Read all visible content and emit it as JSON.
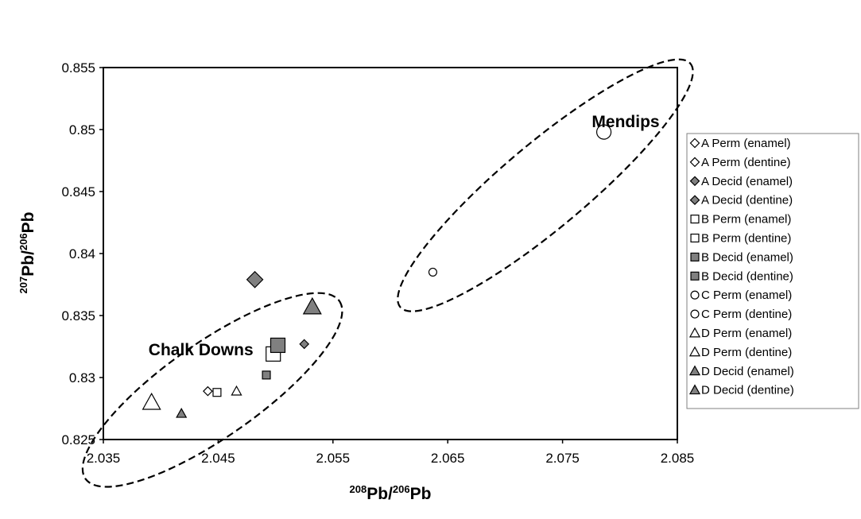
{
  "chart_data": {
    "type": "scatter",
    "title": "",
    "xlabel": {
      "sup1": "208",
      "main1": "Pb/",
      "sup2": "206",
      "main2": "Pb"
    },
    "ylabel": {
      "sup1": "207",
      "main1": "Pb/",
      "sup2": "206",
      "main2": "Pb"
    },
    "xlim": [
      2.035,
      2.085
    ],
    "ylim": [
      0.825,
      0.855
    ],
    "x_ticks": [
      "2.035",
      "2.045",
      "2.055",
      "2.065",
      "2.075",
      "2.085"
    ],
    "y_ticks": [
      "0.825",
      "0.83",
      "0.835",
      "0.84",
      "0.845",
      "0.85",
      "0.855"
    ],
    "grid": false,
    "legend_position": "right",
    "annotations": [
      {
        "text": "Mendips",
        "x": 2.0805,
        "y": 0.8502
      },
      {
        "text": "Chalk Downs",
        "x": 2.0435,
        "y": 0.8318
      }
    ],
    "regions": [
      {
        "name": "Mendips",
        "cx": 2.0735,
        "cy": 0.8455,
        "rx": 0.0165,
        "ry": 0.0034,
        "angle": -40
      },
      {
        "name": "Chalk Downs",
        "cx": 2.0445,
        "cy": 0.829,
        "rx": 0.0135,
        "ry": 0.0038,
        "angle": -35
      }
    ],
    "colors": {
      "open": "#ffffff",
      "filled": "#808080",
      "stroke": "#000000"
    },
    "series": [
      {
        "name": "A Perm (enamel)",
        "marker": "diamond",
        "fill": "open",
        "size": "small",
        "points": [
          [
            2.0441,
            0.8289
          ]
        ]
      },
      {
        "name": "A Perm (dentine)",
        "marker": "diamond",
        "fill": "open",
        "size": "large",
        "points": []
      },
      {
        "name": "A Decid (enamel)",
        "marker": "diamond",
        "fill": "filled",
        "size": "small",
        "points": [
          [
            2.0525,
            0.8327
          ]
        ]
      },
      {
        "name": "A Decid (dentine)",
        "marker": "diamond",
        "fill": "filled",
        "size": "large",
        "points": [
          [
            2.0482,
            0.8379
          ]
        ]
      },
      {
        "name": "B Perm (enamel)",
        "marker": "square",
        "fill": "open",
        "size": "small",
        "points": [
          [
            2.0449,
            0.8288
          ]
        ]
      },
      {
        "name": "B Perm (dentine)",
        "marker": "square",
        "fill": "open",
        "size": "large",
        "points": [
          [
            2.0498,
            0.8319
          ]
        ]
      },
      {
        "name": "B Decid (enamel)",
        "marker": "square",
        "fill": "filled",
        "size": "small",
        "points": [
          [
            2.0492,
            0.8302
          ]
        ]
      },
      {
        "name": "B Decid (dentine)",
        "marker": "square",
        "fill": "filled",
        "size": "large",
        "points": [
          [
            2.0502,
            0.8326
          ]
        ]
      },
      {
        "name": "C Perm (enamel)",
        "marker": "circle",
        "fill": "open",
        "size": "small",
        "points": [
          [
            2.0637,
            0.8385
          ]
        ]
      },
      {
        "name": "C Perm (dentine)",
        "marker": "circle",
        "fill": "open",
        "size": "large",
        "points": [
          [
            2.0786,
            0.8498
          ]
        ]
      },
      {
        "name": "D Perm (enamel)",
        "marker": "triangle",
        "fill": "open",
        "size": "small",
        "points": [
          [
            2.0466,
            0.8289
          ]
        ]
      },
      {
        "name": "D Perm (dentine)",
        "marker": "triangle",
        "fill": "open",
        "size": "large",
        "points": [
          [
            2.0392,
            0.828
          ]
        ]
      },
      {
        "name": "D Decid (enamel)",
        "marker": "triangle",
        "fill": "filled",
        "size": "small",
        "points": [
          [
            2.0418,
            0.8271
          ]
        ]
      },
      {
        "name": "D Decid (dentine)",
        "marker": "triangle",
        "fill": "filled",
        "size": "large",
        "points": [
          [
            2.0532,
            0.8357
          ]
        ]
      }
    ]
  }
}
